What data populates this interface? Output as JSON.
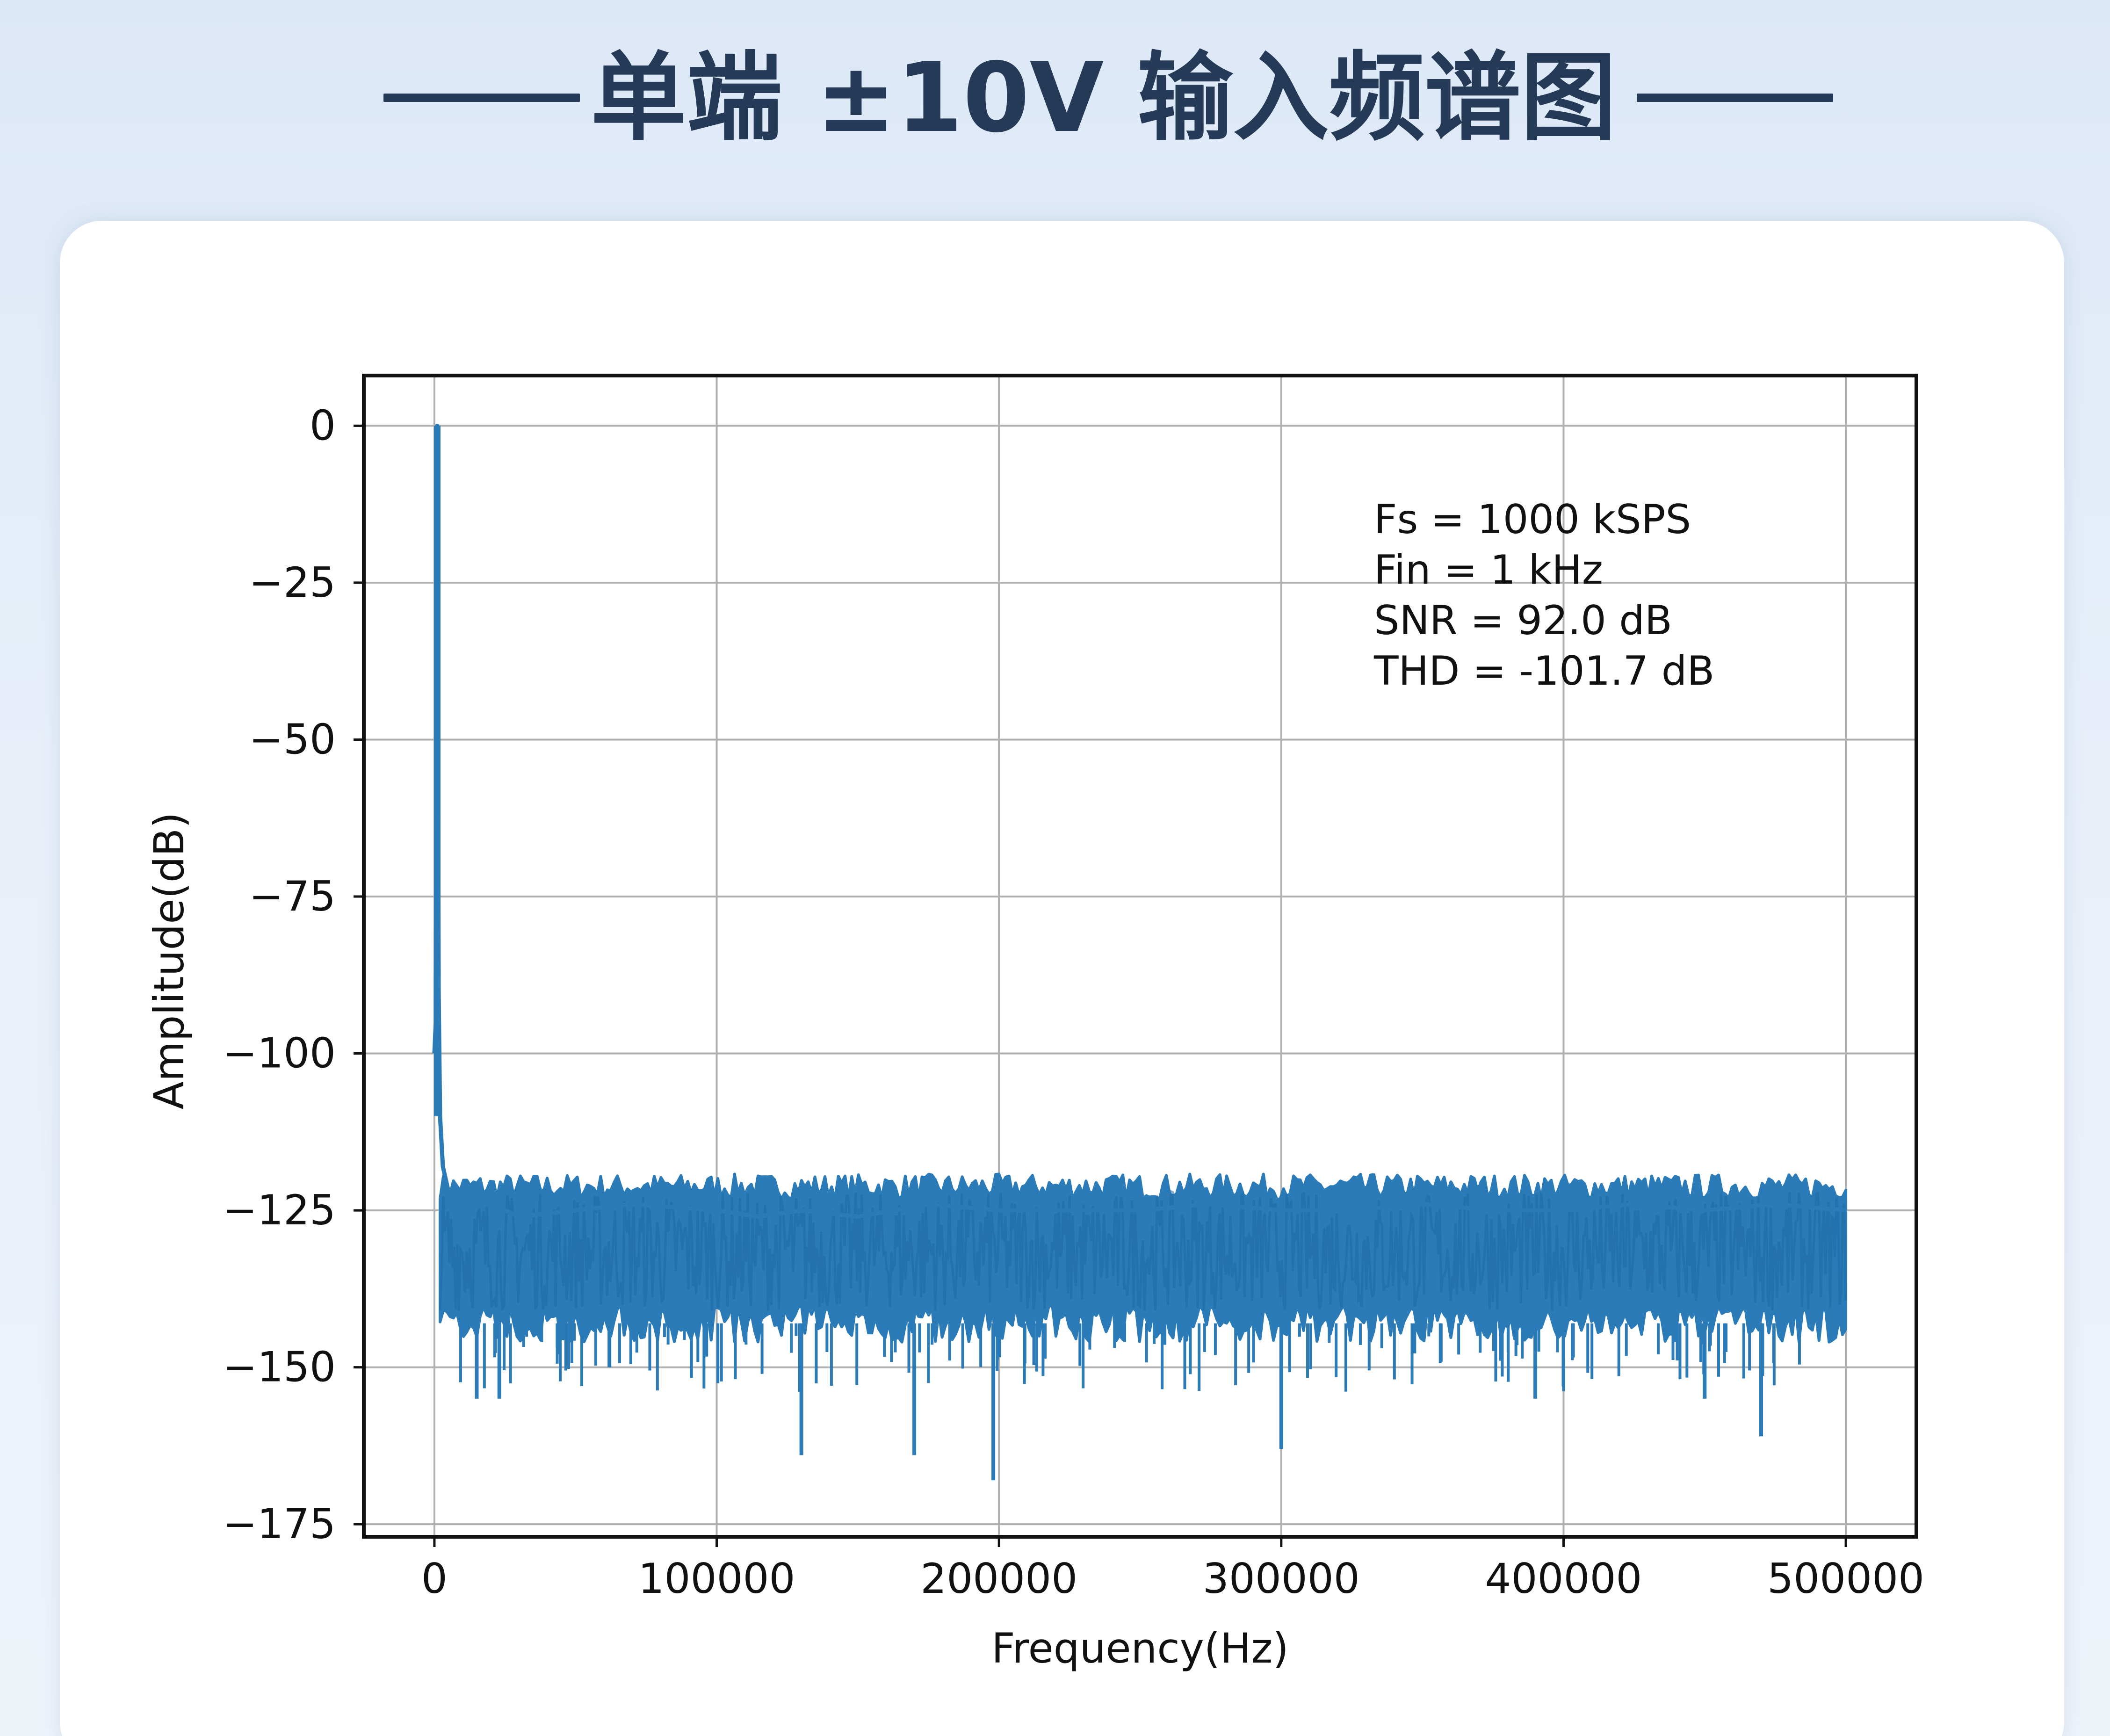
{
  "header": {
    "title": "单端 ±10V 输入频谱图"
  },
  "colors": {
    "series": "#2a7bb8",
    "title": "#243a57",
    "grid": "#b0b0b0",
    "background_top": "#dde8f7"
  },
  "chart_data": {
    "type": "line",
    "xlabel": "Frequency(Hz)",
    "ylabel": "Amplitude(dB)",
    "xlim": [
      -25000,
      525000
    ],
    "ylim": [
      -177,
      8
    ],
    "xticks": [
      0,
      100000,
      200000,
      300000,
      400000,
      500000
    ],
    "xtick_labels": [
      "0",
      "100000",
      "200000",
      "300000",
      "400000",
      "500000"
    ],
    "yticks": [
      0,
      -25,
      -50,
      -75,
      -100,
      -125,
      -150,
      -175
    ],
    "ytick_labels": [
      "0",
      "−25",
      "−50",
      "−75",
      "−100",
      "−125",
      "−150",
      "−175"
    ],
    "grid": true,
    "annotations": [
      "Fs = 1000 kSPS",
      "Fin = 1 kHz",
      "SNR = 92.0 dB",
      "THD = -101.7 dB"
    ],
    "series": [
      {
        "color": "#2a7bb8",
        "peak": {
          "x": 1000,
          "y": 0
        },
        "noise_floor_band": {
          "x_start": 2000,
          "x_end": 500000,
          "upper": -122,
          "lower": -143
        },
        "x": [
          0,
          500,
          1000,
          1500,
          2000,
          3000,
          5000,
          10000,
          20000,
          30000,
          50000,
          70000,
          100000,
          115000,
          130000,
          150000,
          175000,
          200000,
          225000,
          250000,
          275000,
          300000,
          325000,
          350000,
          375000,
          400000,
          425000,
          450000,
          475000,
          500000
        ],
        "y": [
          -100,
          -95,
          0,
          -90,
          -110,
          -118,
          -122,
          -125,
          -124,
          -126,
          -125,
          -124,
          -125,
          -126,
          -125,
          -126,
          -124,
          -125,
          -125,
          -125,
          -124,
          -125,
          -125,
          -124,
          -125,
          -125,
          -124,
          -125,
          -124,
          -125
        ],
        "min_spikes": [
          {
            "x": 15000,
            "y": -155
          },
          {
            "x": 23000,
            "y": -155
          },
          {
            "x": 62000,
            "y": -150
          },
          {
            "x": 130000,
            "y": -164
          },
          {
            "x": 170000,
            "y": -164
          },
          {
            "x": 198000,
            "y": -168
          },
          {
            "x": 300000,
            "y": -163
          },
          {
            "x": 390000,
            "y": -155
          },
          {
            "x": 450000,
            "y": -155
          },
          {
            "x": 470000,
            "y": -161
          }
        ]
      }
    ]
  }
}
